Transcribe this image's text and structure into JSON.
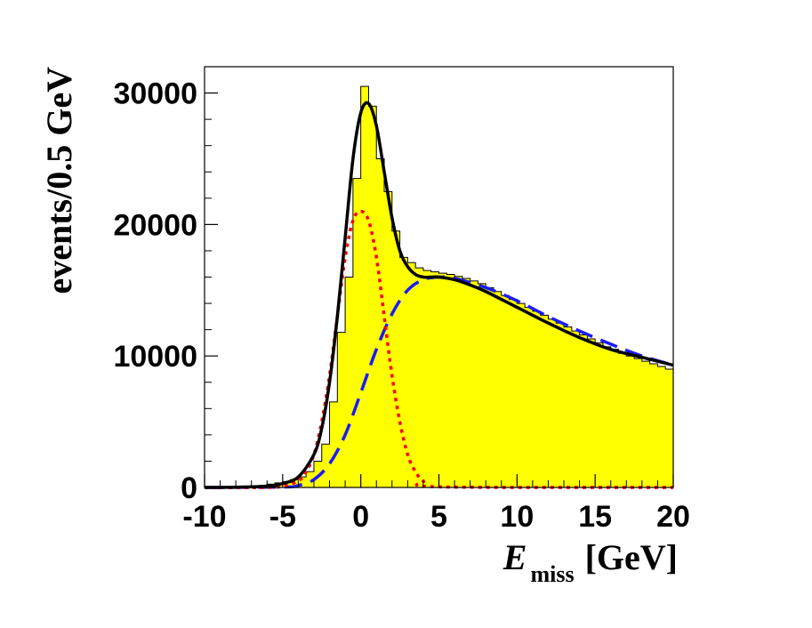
{
  "chart_data": {
    "type": "area",
    "xlim": [
      -10,
      20
    ],
    "ylim": [
      0,
      32000
    ],
    "bin_width": 0.5,
    "xticks": [
      -10,
      -5,
      0,
      5,
      10,
      15,
      20
    ],
    "yticks": [
      0,
      10000,
      20000,
      30000
    ],
    "ylabel": "events/0.5 GeV",
    "xlabel": {
      "symbol": "E",
      "subscript": "miss",
      "unit": "[GeV]"
    },
    "histogram": {
      "fill_color": "#ffff00",
      "edge_color": "#000000",
      "x_low_edges": [
        -10,
        -9.5,
        -9,
        -8.5,
        -8,
        -7.5,
        -7,
        -6.5,
        -6,
        -5.5,
        -5,
        -4.5,
        -4,
        -3.5,
        -3,
        -2.5,
        -2,
        -1.5,
        -1,
        -0.5,
        0,
        0.5,
        1,
        1.5,
        2,
        2.5,
        3,
        3.5,
        4,
        4.5,
        5,
        5.5,
        6,
        6.5,
        7,
        7.5,
        8,
        8.5,
        9,
        9.5,
        10,
        10.5,
        11,
        11.5,
        12,
        12.5,
        13,
        13.5,
        14,
        14.5,
        15,
        15.5,
        16,
        16.5,
        17,
        17.5,
        18,
        18.5,
        19,
        19.5
      ],
      "values": [
        0,
        0,
        0,
        0,
        0,
        50,
        80,
        150,
        250,
        350,
        450,
        600,
        800,
        1200,
        2000,
        3300,
        6500,
        11800,
        16000,
        23500,
        30500,
        29000,
        25000,
        22500,
        19500,
        17500,
        17100,
        16700,
        16500,
        16400,
        16300,
        16200,
        16050,
        15900,
        15700,
        15500,
        15200,
        14900,
        14600,
        14300,
        14000,
        13700,
        13400,
        13100,
        12800,
        12500,
        12200,
        11900,
        11600,
        11300,
        11000,
        10700,
        10500,
        10200,
        10000,
        9800,
        9600,
        9400,
        9200,
        9000
      ]
    },
    "series": [
      {
        "style": "solid",
        "color": "#000000",
        "x": [
          -10,
          -8,
          -6,
          -5,
          -4,
          -3,
          -2.5,
          -2,
          -1.5,
          -1,
          -0.5,
          0,
          0.5,
          1,
          1.5,
          2,
          2.5,
          3,
          3.5,
          4,
          4.5,
          5,
          6,
          7,
          8,
          10,
          12,
          14,
          16,
          18,
          20
        ],
        "values": [
          0,
          20,
          100,
          300,
          800,
          2500,
          4500,
          8000,
          13000,
          19000,
          25000,
          28500,
          29200,
          27500,
          24000,
          20500,
          18000,
          16800,
          16200,
          16000,
          16000,
          16000,
          15800,
          15400,
          14900,
          13700,
          12500,
          11400,
          10500,
          9900,
          9300
        ]
      },
      {
        "style": "dotted",
        "color": "#ff0000",
        "x": [
          -10,
          -6,
          -5,
          -4,
          -3.5,
          -3,
          -2.5,
          -2,
          -1.5,
          -1,
          -0.5,
          0,
          0.5,
          1,
          1.5,
          2,
          2.5,
          3,
          3.5,
          4,
          5,
          20
        ],
        "values": [
          0,
          0,
          100,
          500,
          1200,
          2500,
          5000,
          8500,
          13000,
          17500,
          20300,
          21000,
          20300,
          17500,
          13000,
          8500,
          5000,
          2500,
          1200,
          500,
          50,
          0
        ]
      },
      {
        "style": "dashed",
        "color": "#1a1aff",
        "x": [
          -10,
          -5,
          -4,
          -3,
          -2,
          -1,
          0,
          1,
          2,
          3,
          4,
          5,
          6,
          8,
          10,
          12,
          14,
          16,
          18,
          20
        ],
        "values": [
          0,
          30,
          150,
          600,
          1800,
          4000,
          7200,
          10500,
          13200,
          15000,
          15800,
          16000,
          15900,
          15200,
          14200,
          13000,
          11900,
          10900,
          10000,
          9300
        ]
      }
    ]
  }
}
